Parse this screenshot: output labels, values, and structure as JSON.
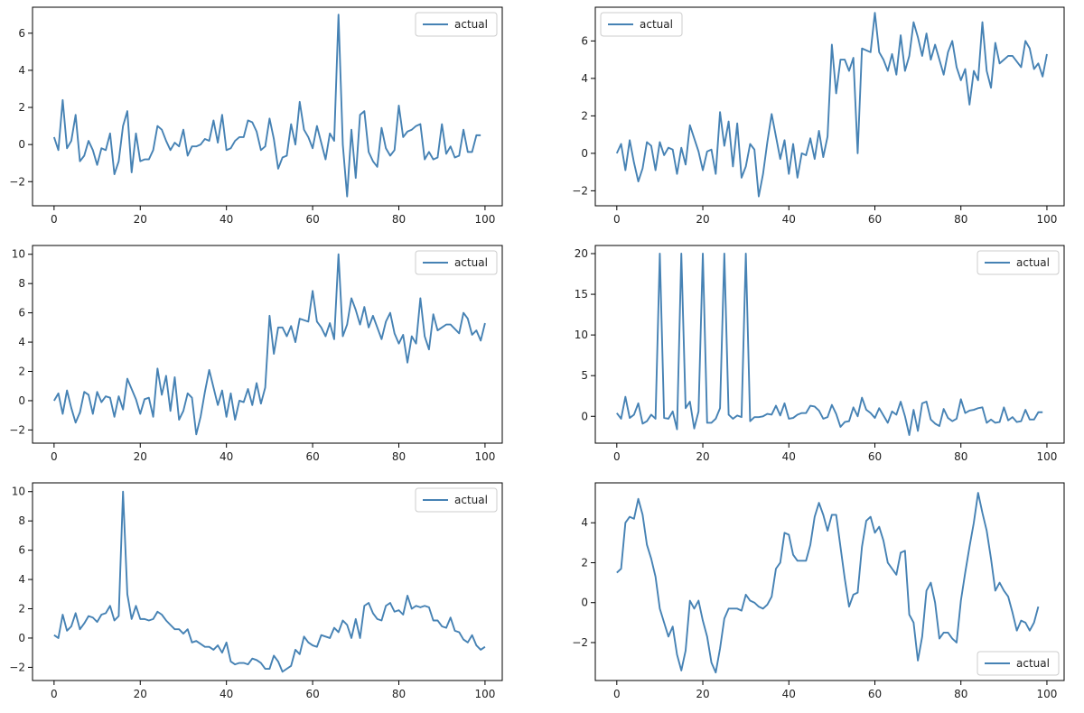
{
  "colors": {
    "line": "#4682b4",
    "axis": "#000000",
    "legend_border": "#cccccc"
  },
  "chart_data": [
    {
      "type": "line",
      "xlim": [
        -5,
        104
      ],
      "ylim": [
        -3.3,
        7.4
      ],
      "xticks": [
        0,
        20,
        40,
        60,
        80,
        100
      ],
      "yticks": [
        -2,
        0,
        2,
        4,
        6
      ],
      "legend_position": "upper-right",
      "series": [
        {
          "name": "actual",
          "y": [
            0.4,
            -0.3,
            2.4,
            -0.2,
            0.2,
            1.6,
            -0.9,
            -0.6,
            0.2,
            -0.3,
            -1.1,
            -0.2,
            -0.3,
            0.6,
            -1.6,
            -0.9,
            1.0,
            1.8,
            -1.5,
            0.6,
            -0.9,
            -0.8,
            -0.8,
            -0.3,
            1.0,
            0.8,
            0.2,
            -0.3,
            0.1,
            -0.1,
            0.8,
            -0.6,
            -0.1,
            -0.1,
            0.0,
            0.3,
            0.2,
            1.3,
            0.1,
            1.6,
            -0.3,
            -0.2,
            0.2,
            0.4,
            0.4,
            1.3,
            1.2,
            0.7,
            -0.3,
            -0.1,
            1.4,
            0.3,
            -1.3,
            -0.7,
            -0.6,
            1.1,
            0.0,
            2.3,
            0.8,
            0.4,
            -0.2,
            1.0,
            0.1,
            -0.8,
            0.6,
            0.2,
            7.0,
            0.0,
            -2.8,
            0.8,
            -1.8,
            1.6,
            1.8,
            -0.4,
            -0.9,
            -1.2,
            0.9,
            -0.2,
            -0.6,
            -0.3,
            2.1,
            0.4,
            0.7,
            0.8,
            1.0,
            1.1,
            -0.8,
            -0.4,
            -0.8,
            -0.7,
            1.1,
            -0.5,
            -0.1,
            -0.7,
            -0.6,
            0.8,
            -0.4,
            -0.4,
            0.5,
            0.5
          ]
        }
      ]
    },
    {
      "type": "line",
      "xlim": [
        -5,
        104
      ],
      "ylim": [
        -2.8,
        7.8
      ],
      "xticks": [
        0,
        20,
        40,
        60,
        80,
        100
      ],
      "yticks": [
        -2,
        0,
        2,
        4,
        6
      ],
      "legend_position": "upper-left",
      "series": [
        {
          "name": "actual",
          "y": [
            0.0,
            0.5,
            -0.9,
            0.7,
            -0.5,
            -1.5,
            -0.8,
            0.6,
            0.4,
            -0.9,
            0.6,
            -0.1,
            0.3,
            0.2,
            -1.1,
            0.3,
            -0.6,
            1.5,
            0.8,
            0.1,
            -0.9,
            0.1,
            0.2,
            -1.1,
            2.2,
            0.4,
            1.7,
            -0.7,
            1.6,
            -1.3,
            -0.7,
            0.5,
            0.2,
            -2.3,
            -1.1,
            0.6,
            2.1,
            0.9,
            -0.3,
            0.7,
            -1.1,
            0.5,
            -1.3,
            0.0,
            -0.1,
            0.8,
            -0.3,
            1.2,
            -0.2,
            0.9,
            5.8,
            3.2,
            5.0,
            5.0,
            4.4,
            5.1,
            0.0,
            5.6,
            5.5,
            5.4,
            7.5,
            5.4,
            5.0,
            4.4,
            5.3,
            4.2,
            6.3,
            4.4,
            5.2,
            7.0,
            6.2,
            5.2,
            6.4,
            5.0,
            5.8,
            5.0,
            4.2,
            5.4,
            6.0,
            4.6,
            3.9,
            4.5,
            2.6,
            4.4,
            3.9,
            7.0,
            4.4,
            3.5,
            5.9,
            4.8,
            5.0,
            5.2,
            5.2,
            4.9,
            4.6,
            6.0,
            5.6,
            4.5,
            4.8,
            4.1,
            5.3
          ]
        }
      ]
    },
    {
      "type": "line",
      "xlim": [
        -5,
        104
      ],
      "ylim": [
        -2.9,
        10.6
      ],
      "xticks": [
        0,
        20,
        40,
        60,
        80,
        100
      ],
      "yticks": [
        -2,
        0,
        2,
        4,
        6,
        8,
        10
      ],
      "legend_position": "upper-right",
      "series": [
        {
          "name": "actual",
          "y": [
            0.0,
            0.5,
            -0.9,
            0.7,
            -0.5,
            -1.5,
            -0.8,
            0.6,
            0.4,
            -0.9,
            0.6,
            -0.1,
            0.3,
            0.2,
            -1.1,
            0.3,
            -0.6,
            1.5,
            0.8,
            0.1,
            -0.9,
            0.1,
            0.2,
            -1.1,
            2.2,
            0.4,
            1.7,
            -0.7,
            1.6,
            -1.3,
            -0.7,
            0.5,
            0.2,
            -2.3,
            -1.1,
            0.6,
            2.1,
            0.9,
            -0.3,
            0.7,
            -1.1,
            0.5,
            -1.3,
            0.0,
            -0.1,
            0.8,
            -0.3,
            1.2,
            -0.2,
            0.9,
            5.8,
            3.2,
            5.0,
            5.0,
            4.4,
            5.1,
            4.0,
            5.6,
            5.5,
            5.4,
            7.5,
            5.4,
            5.0,
            4.4,
            5.3,
            4.2,
            10.0,
            4.4,
            5.2,
            7.0,
            6.2,
            5.2,
            6.4,
            5.0,
            5.8,
            5.0,
            4.2,
            5.4,
            6.0,
            4.6,
            3.9,
            4.5,
            2.6,
            4.4,
            3.9,
            7.0,
            4.4,
            3.5,
            5.9,
            4.8,
            5.0,
            5.2,
            5.2,
            4.9,
            4.6,
            6.0,
            5.6,
            4.5,
            4.8,
            4.1,
            5.3
          ]
        }
      ]
    },
    {
      "type": "line",
      "xlim": [
        -5,
        104
      ],
      "ylim": [
        -3.3,
        21.0
      ],
      "xticks": [
        0,
        20,
        40,
        60,
        80,
        100
      ],
      "yticks": [
        0,
        5,
        10,
        15,
        20
      ],
      "legend_position": "upper-right",
      "series": [
        {
          "name": "actual",
          "y": [
            0.4,
            -0.3,
            2.4,
            -0.2,
            0.2,
            1.6,
            -0.9,
            -0.6,
            0.2,
            -0.3,
            20.0,
            -0.2,
            -0.3,
            0.6,
            -1.6,
            20.0,
            1.0,
            1.8,
            -1.5,
            0.6,
            20.0,
            -0.8,
            -0.8,
            -0.3,
            1.0,
            20.0,
            0.2,
            -0.3,
            0.1,
            -0.1,
            20.0,
            -0.6,
            -0.1,
            -0.1,
            0.0,
            0.3,
            0.2,
            1.3,
            0.1,
            1.6,
            -0.3,
            -0.2,
            0.2,
            0.4,
            0.4,
            1.3,
            1.2,
            0.7,
            -0.3,
            -0.1,
            1.4,
            0.3,
            -1.3,
            -0.7,
            -0.6,
            1.1,
            0.0,
            2.3,
            0.8,
            0.4,
            -0.2,
            1.0,
            0.1,
            -0.8,
            0.6,
            0.2,
            1.8,
            0.0,
            -2.3,
            0.8,
            -1.8,
            1.6,
            1.8,
            -0.4,
            -0.9,
            -1.2,
            0.9,
            -0.2,
            -0.6,
            -0.3,
            2.1,
            0.4,
            0.7,
            0.8,
            1.0,
            1.1,
            -0.8,
            -0.4,
            -0.8,
            -0.7,
            1.1,
            -0.5,
            -0.1,
            -0.7,
            -0.6,
            0.8,
            -0.4,
            -0.4,
            0.5,
            0.5
          ]
        }
      ]
    },
    {
      "type": "line",
      "xlim": [
        -5,
        104
      ],
      "ylim": [
        -2.9,
        10.6
      ],
      "xticks": [
        0,
        20,
        40,
        60,
        80,
        100
      ],
      "yticks": [
        -2,
        0,
        2,
        4,
        6,
        8,
        10
      ],
      "legend_position": "upper-right",
      "series": [
        {
          "name": "actual",
          "y": [
            0.2,
            0.0,
            1.6,
            0.5,
            0.8,
            1.7,
            0.6,
            1.0,
            1.5,
            1.4,
            1.1,
            1.6,
            1.7,
            2.2,
            1.2,
            1.5,
            10.0,
            3.0,
            1.3,
            2.2,
            1.3,
            1.3,
            1.2,
            1.3,
            1.8,
            1.6,
            1.2,
            0.9,
            0.6,
            0.6,
            0.3,
            0.6,
            -0.3,
            -0.2,
            -0.4,
            -0.6,
            -0.6,
            -0.8,
            -0.5,
            -1.0,
            -0.3,
            -1.6,
            -1.8,
            -1.7,
            -1.7,
            -1.8,
            -1.4,
            -1.5,
            -1.7,
            -2.1,
            -2.1,
            -1.2,
            -1.6,
            -2.3,
            -2.1,
            -1.9,
            -0.8,
            -1.1,
            0.1,
            -0.3,
            -0.5,
            -0.6,
            0.2,
            0.1,
            0.0,
            0.7,
            0.4,
            1.2,
            0.9,
            0.0,
            1.3,
            0.0,
            2.2,
            2.4,
            1.7,
            1.3,
            1.2,
            2.2,
            2.4,
            1.8,
            1.9,
            1.6,
            2.9,
            2.0,
            2.2,
            2.1,
            2.2,
            2.1,
            1.2,
            1.2,
            0.8,
            0.7,
            1.4,
            0.5,
            0.4,
            -0.1,
            -0.3,
            0.2,
            -0.5,
            -0.8,
            -0.6
          ]
        }
      ]
    },
    {
      "type": "line",
      "xlim": [
        -5,
        104
      ],
      "ylim": [
        -3.9,
        6.0
      ],
      "xticks": [
        0,
        20,
        40,
        60,
        80,
        100
      ],
      "yticks": [
        -2,
        0,
        2,
        4
      ],
      "legend_position": "lower-right",
      "series": [
        {
          "name": "actual",
          "y": [
            1.5,
            1.7,
            4.0,
            4.3,
            4.2,
            5.2,
            4.4,
            2.9,
            2.2,
            1.3,
            -0.3,
            -1.0,
            -1.7,
            -1.2,
            -2.6,
            -3.4,
            -2.4,
            0.1,
            -0.3,
            0.1,
            -0.9,
            -1.7,
            -3.0,
            -3.5,
            -2.3,
            -0.8,
            -0.3,
            -0.3,
            -0.3,
            -0.4,
            0.4,
            0.1,
            0.0,
            -0.2,
            -0.3,
            -0.1,
            0.3,
            1.7,
            2.0,
            3.5,
            3.4,
            2.4,
            2.1,
            2.1,
            2.1,
            2.9,
            4.3,
            5.0,
            4.4,
            3.6,
            4.4,
            4.4,
            2.8,
            1.2,
            -0.2,
            0.4,
            0.5,
            2.8,
            4.1,
            4.3,
            3.5,
            3.8,
            3.1,
            2.0,
            1.7,
            1.4,
            2.5,
            2.6,
            -0.6,
            -1.0,
            -2.9,
            -1.7,
            0.6,
            1.0,
            0.0,
            -1.8,
            -1.5,
            -1.5,
            -1.8,
            -2.0,
            0.1,
            1.5,
            2.8,
            4.0,
            5.5,
            4.5,
            3.6,
            2.2,
            0.6,
            1.0,
            0.6,
            0.3,
            -0.5,
            -1.4,
            -0.9,
            -1.0,
            -1.4,
            -1.0,
            -0.2
          ]
        }
      ]
    }
  ]
}
